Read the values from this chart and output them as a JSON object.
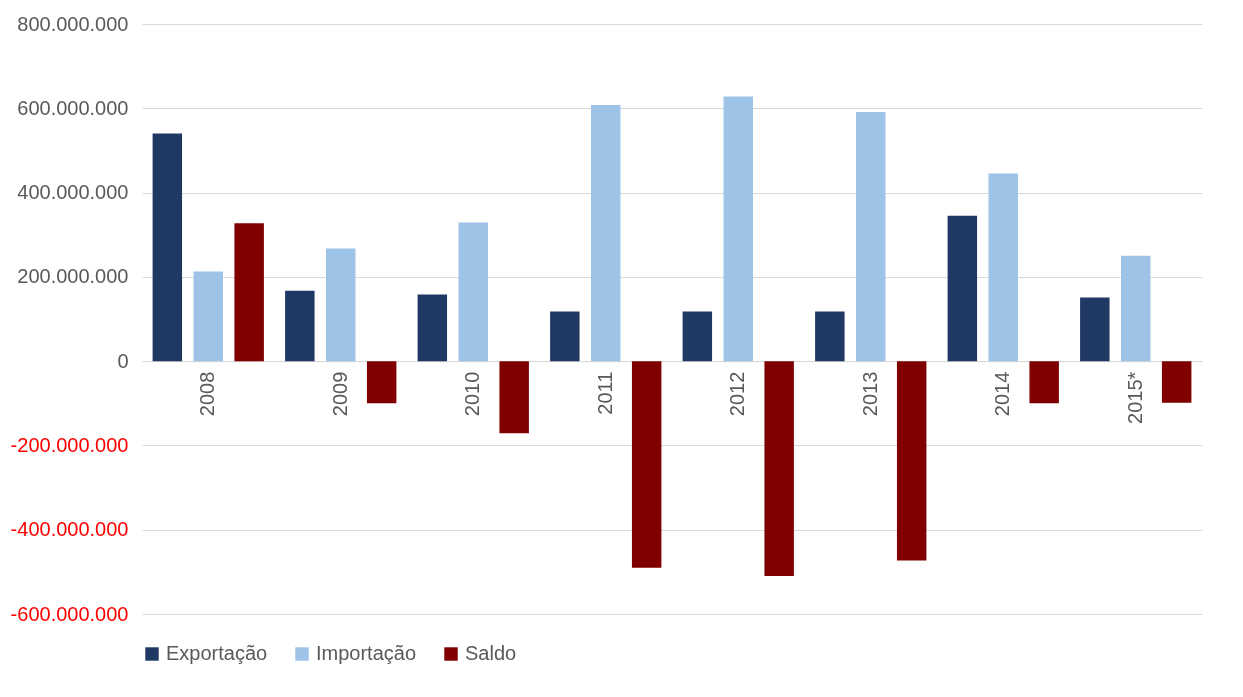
{
  "chart_data": {
    "type": "bar",
    "categories": [
      "2008",
      "2009",
      "2010",
      "2011",
      "2012",
      "2013",
      "2014",
      "2015*"
    ],
    "series": [
      {
        "name": "Exportação",
        "color": "#203864",
        "values": [
          540000000,
          167000000,
          158000000,
          118000000,
          118000000,
          118000000,
          345000000,
          151000000
        ]
      },
      {
        "name": "Importação",
        "color": "#9dc3e6",
        "values": [
          213000000,
          267000000,
          329000000,
          608000000,
          628000000,
          591000000,
          445000000,
          250000000
        ]
      },
      {
        "name": "Saldo",
        "color": "#800000",
        "values": [
          327000000,
          -100000000,
          -171000000,
          -490000000,
          -510000000,
          -473000000,
          -100000000,
          -99000000
        ]
      }
    ],
    "ylim": [
      -600000000,
      800000000
    ],
    "yticks": [
      {
        "value": -600000000,
        "label": "-600.000.000"
      },
      {
        "value": -400000000,
        "label": "-400.000.000"
      },
      {
        "value": -200000000,
        "label": "-200.000.000"
      },
      {
        "value": 0,
        "label": "0"
      },
      {
        "value": 200000000,
        "label": "200.000.000"
      },
      {
        "value": 400000000,
        "label": "400.000.000"
      },
      {
        "value": 600000000,
        "label": "600.000.000"
      },
      {
        "value": 800000000,
        "label": "800.000.000"
      }
    ],
    "grid": "y",
    "legend": "bottom"
  }
}
